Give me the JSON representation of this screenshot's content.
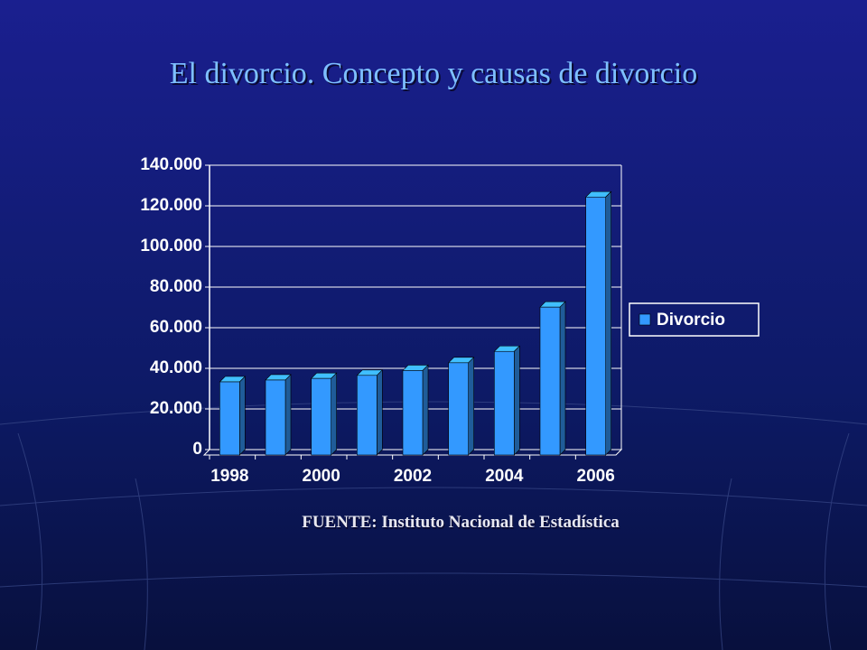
{
  "chart_data": {
    "type": "bar",
    "title": "El divorcio.  Concepto y causas de divorcio",
    "source": "FUENTE: Instituto Nacional de Estadística",
    "categories": [
      "1998",
      null,
      "2000",
      null,
      "2002",
      null,
      "2004",
      null,
      "2006"
    ],
    "series": [
      {
        "name": "Divorcio",
        "color": "#3399ff",
        "values": [
          36000,
          36900,
          37700,
          39200,
          41600,
          45400,
          51000,
          72800,
          127000
        ]
      }
    ],
    "ylim": [
      0,
      140000
    ],
    "yticks": [
      0,
      {
        "value": 20000,
        "label": "20.000"
      },
      {
        "value": 40000,
        "label": "40.000"
      },
      {
        "value": 60000,
        "label": "60.000"
      },
      {
        "value": 80000,
        "label": "80.000"
      },
      {
        "value": 100000,
        "label": "100.000"
      },
      {
        "value": 120000,
        "label": "120.000"
      },
      {
        "value": 140000,
        "label": "140.000"
      }
    ],
    "grid": true,
    "legend": "right"
  }
}
